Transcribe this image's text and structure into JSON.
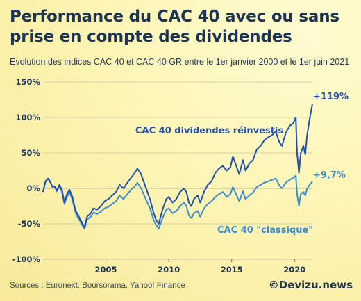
{
  "title": "Performance du CAC 40 avec ou sans prise en compte des dividendes",
  "subtitle": "Evolution des indices CAC 40 et CAC 40 GR entre le 1er janvier 2000 et le 1er juin 2021",
  "source": "Sources : Euronext, Boursorama, Yahoo! Finance",
  "brand": "©Devizu.news",
  "colors": {
    "gr": "#1f4fb0",
    "classic": "#3d8bd1",
    "grid": "#c9c3a0",
    "text": "#1d3553"
  },
  "chart_data": {
    "type": "line",
    "title": "Performance du CAC 40 avec ou sans prise en compte des dividendes",
    "xlabel": "",
    "ylabel": "",
    "xlim": [
      2000.0,
      2021.42
    ],
    "ylim": [
      -100,
      150
    ],
    "y_ticks": [
      -100,
      -50,
      0,
      50,
      100,
      150
    ],
    "y_tick_labels": [
      "-100%",
      "-50%",
      "0%",
      "50%",
      "100%",
      "150%"
    ],
    "x_ticks": [
      2005,
      2010,
      2015,
      2020
    ],
    "x_tick_labels": [
      "2005",
      "2010",
      "2015",
      "2020"
    ],
    "grid": "horizontal",
    "annotations": [
      {
        "text": "+119%",
        "series": "gr"
      },
      {
        "text": "+9,7%",
        "series": "classic"
      }
    ],
    "series": [
      {
        "id": "gr",
        "name": "CAC 40 dividendes réinvestis",
        "x": [
          2000.0,
          2000.2,
          2000.4,
          2000.6,
          2000.75,
          2000.9,
          2001.1,
          2001.3,
          2001.5,
          2001.7,
          2001.9,
          2002.1,
          2002.3,
          2002.5,
          2002.6,
          2002.8,
          2003.0,
          2003.15,
          2003.3,
          2003.5,
          2003.8,
          2004.0,
          2004.3,
          2004.6,
          2004.9,
          2005.2,
          2005.5,
          2005.8,
          2006.1,
          2006.4,
          2006.7,
          2007.0,
          2007.3,
          2007.5,
          2007.8,
          2008.0,
          2008.3,
          2008.5,
          2008.8,
          2009.0,
          2009.2,
          2009.5,
          2009.8,
          2010.0,
          2010.3,
          2010.6,
          2010.9,
          2011.2,
          2011.4,
          2011.6,
          2011.8,
          2012.0,
          2012.3,
          2012.5,
          2012.8,
          2013.1,
          2013.4,
          2013.7,
          2014.0,
          2014.3,
          2014.6,
          2014.9,
          2015.1,
          2015.3,
          2015.6,
          2015.9,
          2016.1,
          2016.4,
          2016.7,
          2017.0,
          2017.3,
          2017.6,
          2017.9,
          2018.2,
          2018.5,
          2018.8,
          2019.0,
          2019.3,
          2019.6,
          2019.9,
          2020.1,
          2020.2,
          2020.35,
          2020.5,
          2020.7,
          2020.85,
          2021.0,
          2021.2,
          2021.42
        ],
        "values": [
          -5,
          10,
          14,
          8,
          2,
          3,
          -3,
          5,
          -2,
          -20,
          -8,
          -2,
          -10,
          -25,
          -32,
          -38,
          -45,
          -50,
          -55,
          -40,
          -35,
          -28,
          -30,
          -25,
          -18,
          -15,
          -10,
          -5,
          5,
          0,
          8,
          15,
          22,
          28,
          20,
          10,
          -5,
          -15,
          -35,
          -45,
          -50,
          -30,
          -15,
          -12,
          -20,
          -15,
          -5,
          0,
          -5,
          -20,
          -25,
          -15,
          -10,
          -20,
          -5,
          5,
          10,
          22,
          28,
          32,
          25,
          30,
          45,
          35,
          20,
          40,
          25,
          35,
          40,
          55,
          60,
          68,
          72,
          75,
          80,
          65,
          60,
          78,
          88,
          92,
          100,
          50,
          22,
          50,
          60,
          48,
          75,
          98,
          119
        ]
      },
      {
        "id": "classic",
        "name": "CAC 40 \"classique\"",
        "x": [
          2000.0,
          2000.2,
          2000.4,
          2000.6,
          2000.75,
          2000.9,
          2001.1,
          2001.3,
          2001.5,
          2001.7,
          2001.9,
          2002.1,
          2002.3,
          2002.5,
          2002.6,
          2002.8,
          2003.0,
          2003.15,
          2003.3,
          2003.5,
          2003.8,
          2004.0,
          2004.3,
          2004.6,
          2004.9,
          2005.2,
          2005.5,
          2005.8,
          2006.1,
          2006.4,
          2006.7,
          2007.0,
          2007.3,
          2007.5,
          2007.8,
          2008.0,
          2008.3,
          2008.5,
          2008.8,
          2009.0,
          2009.2,
          2009.5,
          2009.8,
          2010.0,
          2010.3,
          2010.6,
          2010.9,
          2011.2,
          2011.4,
          2011.6,
          2011.8,
          2012.0,
          2012.3,
          2012.5,
          2012.8,
          2013.1,
          2013.4,
          2013.7,
          2014.0,
          2014.3,
          2014.6,
          2014.9,
          2015.1,
          2015.3,
          2015.6,
          2015.9,
          2016.1,
          2016.4,
          2016.7,
          2017.0,
          2017.3,
          2017.6,
          2017.9,
          2018.2,
          2018.5,
          2018.8,
          2019.0,
          2019.3,
          2019.6,
          2019.9,
          2020.1,
          2020.2,
          2020.35,
          2020.5,
          2020.7,
          2020.85,
          2021.0,
          2021.2,
          2021.42
        ],
        "values": [
          -5,
          10,
          14,
          8,
          2,
          3,
          -4,
          3,
          -5,
          -22,
          -12,
          -6,
          -14,
          -28,
          -35,
          -42,
          -48,
          -53,
          -57,
          -44,
          -40,
          -34,
          -36,
          -33,
          -28,
          -26,
          -22,
          -18,
          -10,
          -15,
          -8,
          -2,
          3,
          8,
          0,
          -8,
          -20,
          -28,
          -45,
          -52,
          -57,
          -42,
          -30,
          -28,
          -35,
          -32,
          -25,
          -20,
          -25,
          -38,
          -42,
          -35,
          -32,
          -40,
          -28,
          -22,
          -18,
          -12,
          -8,
          -5,
          -12,
          -8,
          2,
          -6,
          -18,
          -4,
          -15,
          -10,
          -6,
          2,
          5,
          8,
          10,
          12,
          14,
          4,
          0,
          8,
          12,
          15,
          18,
          -8,
          -25,
          -8,
          -5,
          -10,
          0,
          5,
          9.7
        ]
      }
    ]
  }
}
